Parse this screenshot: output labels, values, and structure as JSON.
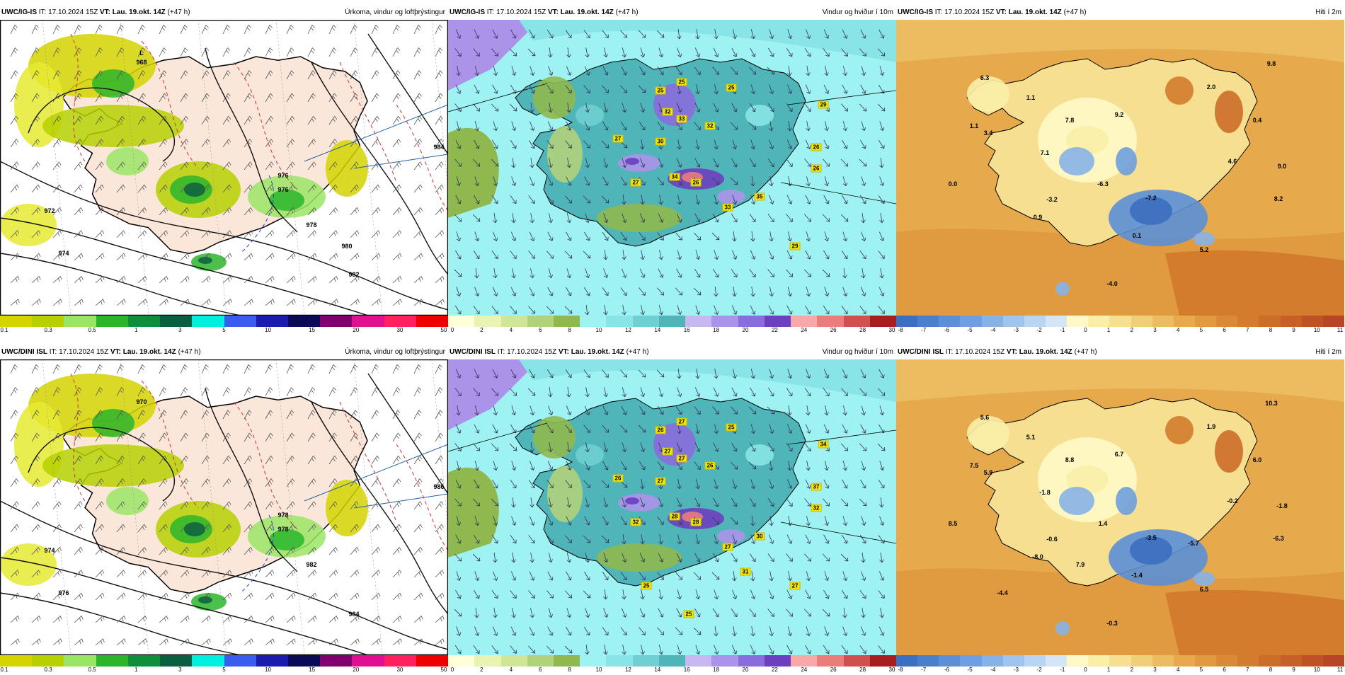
{
  "rows": [
    {
      "id": "igis",
      "panels": [
        {
          "model": "UWC/IG-IS",
          "it": "IT: 17.10.2024 15Z",
          "vt": "VT: Lau. 19.okt. 14Z",
          "lead": "(+47 h)",
          "title": "Úrkoma, vindur og loftþrýstingur",
          "kind": "precip"
        },
        {
          "model": "UWC/IG-IS",
          "it": "IT: 17.10.2024 15Z",
          "vt": "VT: Lau. 19.okt. 14Z",
          "lead": "(+47 h)",
          "title": "Vindur og hviður í 10m",
          "kind": "wind"
        },
        {
          "model": "UWC/IG-IS",
          "it": "IT: 17.10.2024 15Z",
          "vt": "VT: Lau. 19.okt. 14Z",
          "lead": "(+47 h)",
          "title": "Hiti í 2m",
          "kind": "temp"
        }
      ],
      "pressure_labels": [
        "968",
        "972",
        "974",
        "976",
        "976",
        "978",
        "982",
        "984",
        "980"
      ],
      "low_label": "L",
      "gusts": [
        "25",
        "25",
        "25",
        "32",
        "33",
        "32",
        "27",
        "30",
        "34",
        "27",
        "26",
        "33",
        "35",
        "26",
        "29",
        "26",
        "29"
      ],
      "temps": [
        "6.3",
        "1.1",
        "1.1",
        "2.0",
        "9.8",
        "3.4",
        "7.8",
        "9.2",
        "0.4",
        "7.1",
        "4.6",
        "9.0",
        "0.0",
        "-3.2",
        "-6.3",
        "-7.2",
        "8.2",
        "0.9",
        "0.1",
        "5.2",
        "-4.0"
      ]
    },
    {
      "id": "dini",
      "panels": [
        {
          "model": "UWC/DINI ISL",
          "it": "IT: 17.10.2024 15Z",
          "vt": "VT: Lau. 19.okt. 14Z",
          "lead": "(+47 h)",
          "title": "Úrkoma, vindur og loftþrýstingur",
          "kind": "precip"
        },
        {
          "model": "UWC/DINI ISL",
          "it": "IT: 17.10.2024 15Z",
          "vt": "VT: Lau. 19.okt. 14Z",
          "lead": "(+47 h)",
          "title": "Vindur og hviður í 10m",
          "kind": "wind"
        },
        {
          "model": "UWC/DINI ISL",
          "it": "IT: 17.10.2024 15Z",
          "vt": "VT: Lau. 19.okt. 14Z",
          "lead": "(+47 h)",
          "title": "Hiti í 2m",
          "kind": "temp"
        }
      ],
      "pressure_labels": [
        "970",
        "974",
        "976",
        "978",
        "978",
        "982",
        "984",
        "986"
      ],
      "low_label": "",
      "gusts": [
        "27",
        "26",
        "25",
        "27",
        "27",
        "26",
        "26",
        "27",
        "28",
        "32",
        "28",
        "27",
        "30",
        "37",
        "34",
        "32",
        "27",
        "25",
        "31",
        "25"
      ],
      "temps": [
        "5.6",
        "5.1",
        "7.5",
        "1.9",
        "10.3",
        "5.9",
        "8.8",
        "6.7",
        "6.0",
        "-1.8",
        "-0.2",
        "-1.8",
        "8.5",
        "-0.6",
        "1.4",
        "-3.5",
        "-6.3",
        "-8.0",
        "-1.4",
        "6.5",
        "-0.3",
        "7.9",
        "-5.7",
        "-4.4"
      ]
    }
  ],
  "colorbars": {
    "precip": {
      "ticks": [
        "0.1",
        "0.3",
        "0.5",
        "1",
        "3",
        "5",
        "10",
        "15",
        "20",
        "30",
        "50"
      ],
      "colors": [
        "#d4d400",
        "#b6d000",
        "#9be565",
        "#2bb52b",
        "#0f8f3b",
        "#0b5f40",
        "#00f0e0",
        "#3a5cf0",
        "#1b1bb0",
        "#0a0a55",
        "#80006e",
        "#e01090",
        "#ff2060",
        "#ee0000"
      ]
    },
    "wind": {
      "ticks": [
        "0",
        "2",
        "4",
        "6",
        "8",
        "10",
        "12",
        "14",
        "16",
        "18",
        "20",
        "22",
        "24",
        "26",
        "28",
        "30"
      ],
      "colors": [
        "#ffffd8",
        "#e8f4b0",
        "#cfe59a",
        "#b0d27c",
        "#8fb84f",
        "#9ff2f2",
        "#88e4e6",
        "#6fcfd2",
        "#4fb5b8",
        "#c7b8f2",
        "#ab93ea",
        "#8a6ddd",
        "#6b3fbf",
        "#f7a8a8",
        "#ea7c7c",
        "#d04f4f",
        "#a81e1e"
      ]
    },
    "temp": {
      "ticks": [
        "-8",
        "-7",
        "-6",
        "-5",
        "-4",
        "-3",
        "-2",
        "-1",
        "0",
        "1",
        "2",
        "3",
        "4",
        "5",
        "6",
        "7",
        "8",
        "9",
        "10",
        "11"
      ],
      "colors": [
        "#3b6fc0",
        "#4a7fcc",
        "#5b8fd6",
        "#6f9fde",
        "#87b2e6",
        "#9fc4ee",
        "#b8d5f2",
        "#d4e6f6",
        "#fff9c8",
        "#fbeea8",
        "#f6df90",
        "#f0cf78",
        "#ebbd60",
        "#e6aa4c",
        "#e09a40",
        "#da8a36",
        "#d47c2e",
        "#cc6e28",
        "#c66028",
        "#be5226",
        "#b84626"
      ]
    }
  }
}
